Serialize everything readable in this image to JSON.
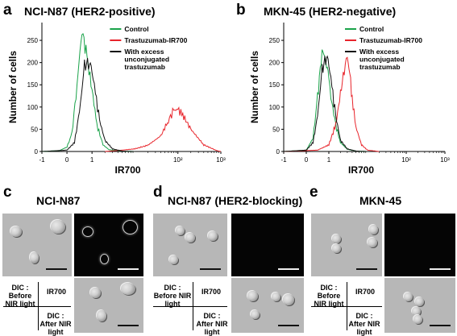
{
  "panels": {
    "a": {
      "letter": "a",
      "title": "NCI-N87 (HER2-positive)"
    },
    "b": {
      "letter": "b",
      "title": "MKN-45 (HER2-negative)"
    },
    "c": {
      "letter": "c",
      "title": "NCI-N87"
    },
    "d": {
      "letter": "d",
      "title": "NCI-N87 (HER2-blocking)"
    },
    "e": {
      "letter": "e",
      "title": "MKN-45"
    }
  },
  "chart_data": [
    {
      "type": "line",
      "panel": "a",
      "title": "NCI-N87 (HER2-positive)",
      "xlabel": "IR700",
      "ylabel": "Number of cells",
      "xscale": "log",
      "xticks": [
        "-1",
        "0",
        "1",
        "10²",
        "10³"
      ],
      "yticks": [
        0,
        50,
        100,
        150,
        200,
        250
      ],
      "ylim": [
        0,
        290
      ],
      "legend_position": "top-right",
      "series": [
        {
          "name": "Control",
          "color": "#1aa34a",
          "x": [
            -1,
            -0.3,
            0,
            0.2,
            0.4,
            0.6,
            0.8,
            1.0,
            1.3,
            1.8,
            2.5,
            5,
            10
          ],
          "y": [
            0,
            2,
            10,
            40,
            150,
            275,
            210,
            140,
            60,
            15,
            4,
            1,
            0
          ]
        },
        {
          "name": "Trastuzumab-IR700",
          "color": "#e8242b",
          "x": [
            2,
            5,
            10,
            20,
            40,
            60,
            80,
            100,
            130,
            200,
            400,
            800,
            1000
          ],
          "y": [
            0,
            3,
            6,
            14,
            35,
            70,
            92,
            95,
            82,
            50,
            15,
            2,
            0
          ]
        },
        {
          "name": "With excess unconjugated trastuzumab",
          "color": "#111111",
          "x": [
            -1,
            0,
            0.3,
            0.5,
            0.7,
            0.9,
            1.0,
            1.2,
            1.5,
            2,
            3,
            5,
            10
          ],
          "y": [
            0,
            3,
            20,
            90,
            190,
            205,
            180,
            130,
            70,
            25,
            6,
            1,
            0
          ]
        }
      ]
    },
    {
      "type": "line",
      "panel": "b",
      "title": "MKN-45 (HER2-negative)",
      "xlabel": "IR700",
      "ylabel": "Number of cells",
      "xscale": "log",
      "xticks": [
        "-1",
        "0",
        "1",
        "10²",
        "10³"
      ],
      "yticks": [
        0,
        50,
        100,
        150,
        200,
        250
      ],
      "ylim": [
        0,
        290
      ],
      "legend_position": "top-right",
      "series": [
        {
          "name": "Control",
          "color": "#1aa34a",
          "x": [
            -1,
            0,
            0.3,
            0.5,
            0.7,
            0.9,
            1.0,
            1.2,
            1.5,
            2,
            3,
            5,
            10
          ],
          "y": [
            0,
            3,
            30,
            120,
            230,
            200,
            160,
            110,
            60,
            20,
            5,
            1,
            0
          ]
        },
        {
          "name": "Trastuzumab-IR700",
          "color": "#e8242b",
          "x": [
            -1,
            0.5,
            1,
            1.5,
            2,
            2.5,
            3,
            3.5,
            4,
            5,
            7,
            10,
            20
          ],
          "y": [
            0,
            3,
            15,
            60,
            130,
            185,
            210,
            175,
            120,
            55,
            15,
            3,
            0
          ]
        },
        {
          "name": "With excess unconjugated trastuzumab",
          "color": "#111111",
          "x": [
            -1,
            0,
            0.3,
            0.5,
            0.7,
            0.9,
            1.0,
            1.2,
            1.5,
            2,
            3,
            5,
            10
          ],
          "y": [
            0,
            3,
            20,
            80,
            180,
            220,
            195,
            145,
            80,
            25,
            6,
            1,
            0
          ]
        }
      ]
    }
  ],
  "microscopy_key": {
    "top_left": "DIC : Before NIR light",
    "top_right": "IR700",
    "bottom_right": "DIC : After NIR light"
  }
}
